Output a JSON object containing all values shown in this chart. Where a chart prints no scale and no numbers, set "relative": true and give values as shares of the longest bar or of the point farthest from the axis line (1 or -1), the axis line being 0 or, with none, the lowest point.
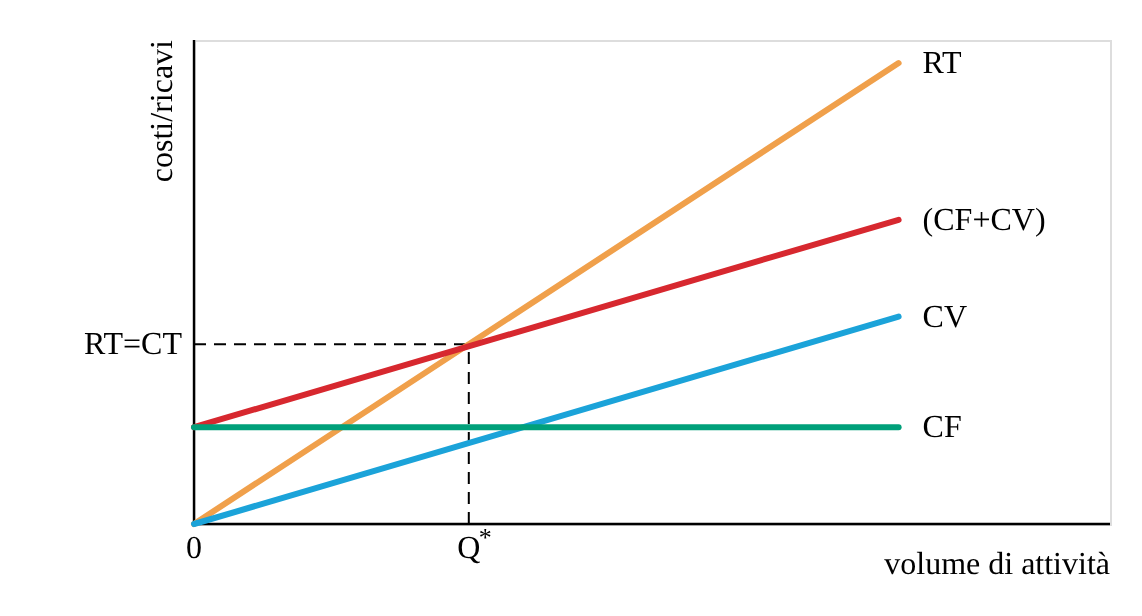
{
  "chart_data": {
    "type": "line",
    "relative": true,
    "xlabel": "volume di attività",
    "ylabel": "costi/ricavi",
    "categories": [
      null,
      null
    ],
    "annotations": [
      "0",
      "Q$^{*}$"
    ],
    "line_style": "solid",
    "marker": "none",
    "series": [
      {
        "name": "RT",
        "color": "#f0a04b",
        "values": [
          0,
          1
        ]
      },
      {
        "name": "(CF+CV)",
        "color": "#d7282f",
        "values": [
          0.21,
          0.66
        ]
      },
      {
        "name": "CV",
        "color": "#1ba3d9",
        "values": [
          0,
          0.45
        ]
      },
      {
        "name": "CF",
        "color": "#00a07a",
        "values": [
          0.21,
          0.21
        ]
      }
    ],
    "ref_lines": [
      {
        "axis": "y",
        "value": 0.39,
        "label": "RT=CT",
        "line_style": "dashed",
        "color": "#000000"
      }
    ]
  }
}
